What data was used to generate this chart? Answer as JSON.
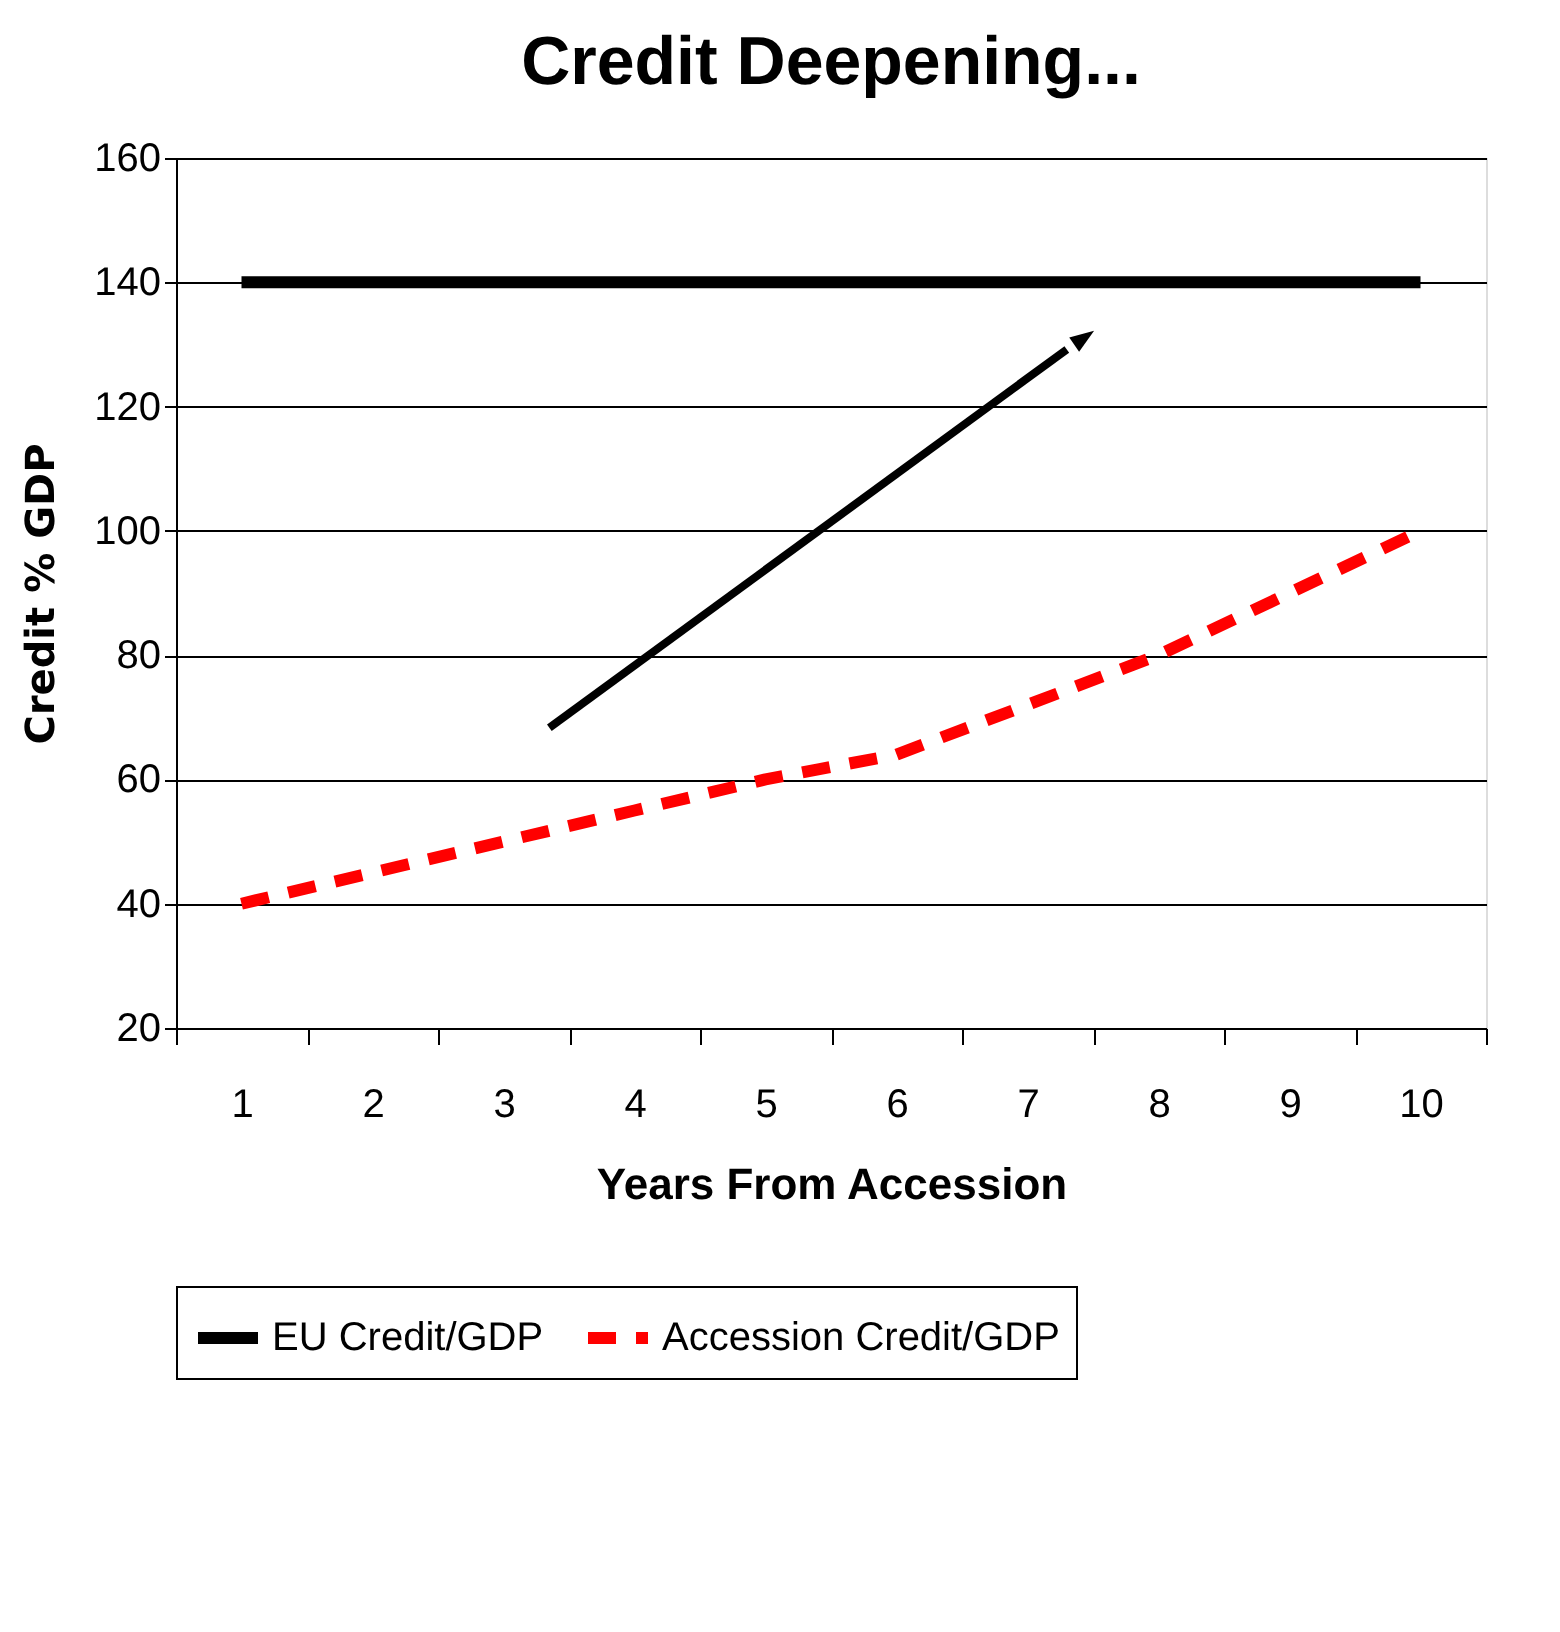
{
  "chart_data": {
    "type": "line",
    "title": "Credit Deepening...",
    "xlabel": "Years From Accession",
    "ylabel": "Credit % GDP",
    "categories": [
      "1",
      "2",
      "3",
      "4",
      "5",
      "6",
      "7",
      "8",
      "9",
      "10"
    ],
    "series": [
      {
        "name": "EU Credit/GDP",
        "color": "#000000",
        "line_style": "solid",
        "values": [
          140,
          140,
          140,
          140,
          140,
          140,
          140,
          140,
          140,
          140
        ]
      },
      {
        "name": "Accession Credit/GDP",
        "color": "#ff0000",
        "line_style": "dashed",
        "values": [
          40,
          45,
          50,
          55,
          60,
          64,
          72,
          80,
          90,
          100
        ]
      }
    ],
    "ylim": [
      20,
      160
    ],
    "yticks": [
      20,
      40,
      60,
      80,
      100,
      120,
      140,
      160
    ],
    "grid": "y",
    "legend": "bottom",
    "marker": "none"
  }
}
